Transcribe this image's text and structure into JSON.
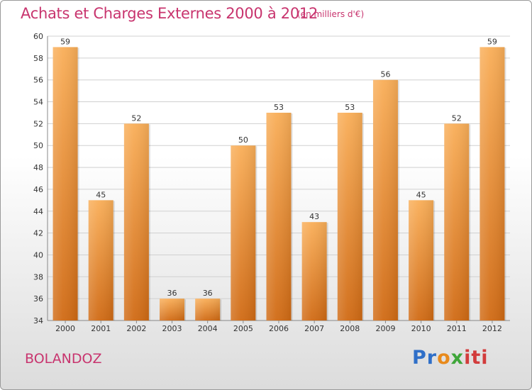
{
  "header": {
    "title": "Achats et Charges Externes 2000 à 2012",
    "subtitle": "(en milliers d'€)"
  },
  "footer": {
    "commune": "BOLANDOZ",
    "logo": [
      "Pr",
      "o",
      "x",
      "iti"
    ]
  },
  "colors": {
    "title": "#c8346e",
    "bar_light": "#f7a84e",
    "bar_dark": "#d8731c",
    "grid": "#cfcfcf"
  },
  "chart_data": {
    "type": "bar",
    "title": "Achats et Charges Externes 2000 à 2012",
    "subtitle": "(en milliers d'€)",
    "categories": [
      "2000",
      "2001",
      "2002",
      "2003",
      "2004",
      "2005",
      "2006",
      "2007",
      "2008",
      "2009",
      "2010",
      "2011",
      "2012"
    ],
    "values": [
      59,
      45,
      52,
      36,
      36,
      50,
      53,
      43,
      53,
      56,
      45,
      52,
      59
    ],
    "ylim": [
      34,
      60
    ],
    "yticks": [
      34,
      36,
      38,
      40,
      42,
      44,
      46,
      48,
      50,
      52,
      54,
      56,
      58,
      60
    ],
    "grid": "horizontal",
    "data_labels": true
  }
}
